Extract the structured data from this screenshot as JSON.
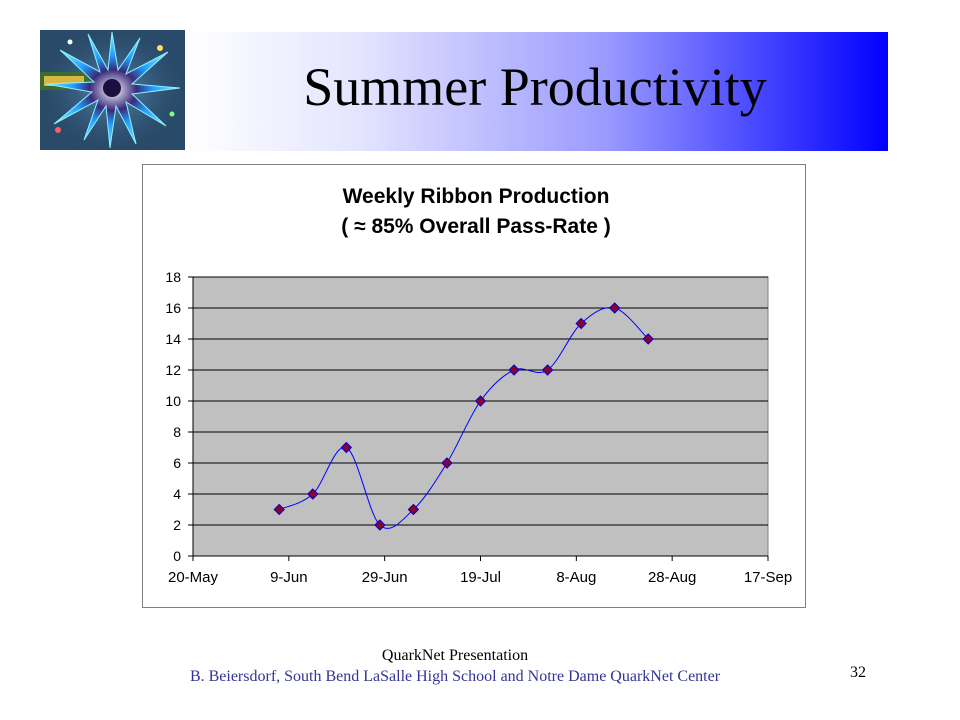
{
  "slide": {
    "title": "Summer Productivity",
    "footer_line1": "QuarkNet Presentation",
    "footer_line2": "B. Beiersdorf,  South Bend LaSalle High School  and  Notre Dame QuarkNet Center",
    "page_number": "32"
  },
  "logo": {
    "icon": "starburst-logo-icon"
  },
  "colors": {
    "band_start": "#ffffff",
    "band_end": "#0000ff",
    "plot_bg": "#c0c0c0",
    "line": "#0000ff",
    "marker": "#8b0030",
    "marker_outline": "#0000cc",
    "footer_line2": "#333399"
  },
  "chart_data": {
    "type": "line",
    "title_line1": "Weekly Ribbon Production",
    "title_line2": "( ≈ 85% Overall Pass-Rate )",
    "xlabel": "",
    "ylabel": "",
    "x_ticks": [
      "20-May",
      "9-Jun",
      "29-Jun",
      "19-Jul",
      "8-Aug",
      "28-Aug",
      "17-Sep"
    ],
    "x_range_days": [
      0,
      120
    ],
    "ylim": [
      0,
      18
    ],
    "y_ticks": [
      0,
      2,
      4,
      6,
      8,
      10,
      12,
      14,
      16,
      18
    ],
    "grid": "horizontal",
    "legend": "none",
    "smoothed": true,
    "series": [
      {
        "x": [
          "7-Jun",
          "14-Jun",
          "21-Jun",
          "28-Jun",
          "5-Jul",
          "12-Jul",
          "19-Jul",
          "26-Jul",
          "2-Aug",
          "9-Aug",
          "16-Aug",
          "23-Aug"
        ],
        "values": [
          3,
          4,
          7,
          2,
          3,
          6,
          10,
          12,
          12,
          15,
          16,
          14
        ]
      }
    ]
  }
}
